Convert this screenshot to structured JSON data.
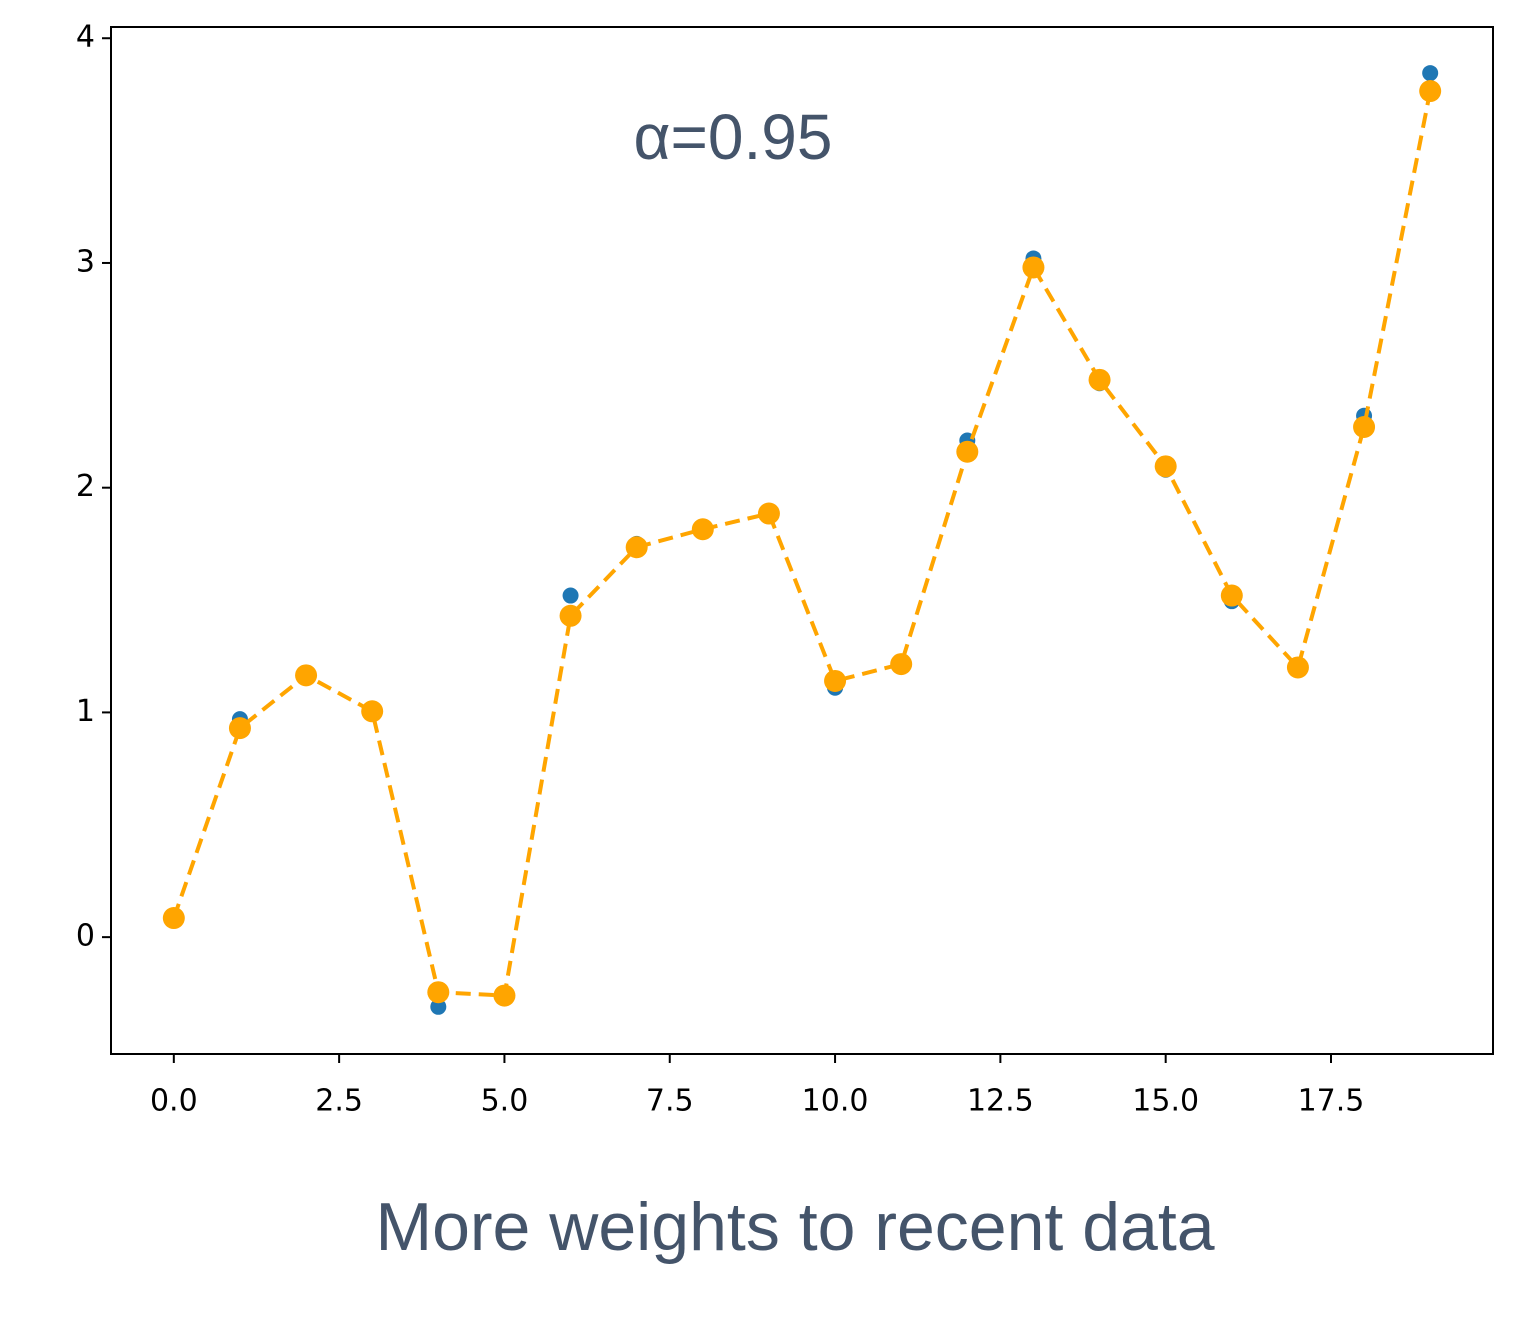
{
  "chart_data": {
    "type": "line",
    "annotation": "α=0.95",
    "caption": "More weights to recent data",
    "x": [
      0,
      1,
      2,
      3,
      4,
      5,
      6,
      7,
      8,
      9,
      10,
      11,
      12,
      13,
      14,
      15,
      16,
      17,
      18,
      19
    ],
    "series": [
      {
        "color": "#1f77b4",
        "line": "none",
        "values": [
          0.08,
          0.97,
          1.17,
          1.0,
          -0.31,
          -0.26,
          1.52,
          1.75,
          1.81,
          1.89,
          1.11,
          1.22,
          2.21,
          3.02,
          2.465,
          2.08,
          1.495,
          1.2,
          2.32,
          3.845
        ]
      },
      {
        "color": "#ffa500",
        "line": "dashed",
        "values": [
          0.085,
          0.93,
          1.165,
          1.005,
          -0.245,
          -0.26,
          1.43,
          1.735,
          1.815,
          1.885,
          1.14,
          1.215,
          2.16,
          2.98,
          2.48,
          2.095,
          1.52,
          1.2,
          2.27,
          3.765
        ]
      }
    ],
    "xlim": [
      -0.95,
      19.95
    ],
    "ylim": [
      -0.52,
      4.05
    ],
    "xticks": [
      {
        "value": 0,
        "label": "0.0"
      },
      2.5,
      {
        "value": 5,
        "label": "5.0"
      },
      7.5,
      {
        "value": 10,
        "label": "10.0"
      },
      12.5,
      {
        "value": 15,
        "label": "15.0"
      },
      17.5
    ],
    "yticks": [
      0,
      1,
      2,
      3,
      4
    ]
  }
}
